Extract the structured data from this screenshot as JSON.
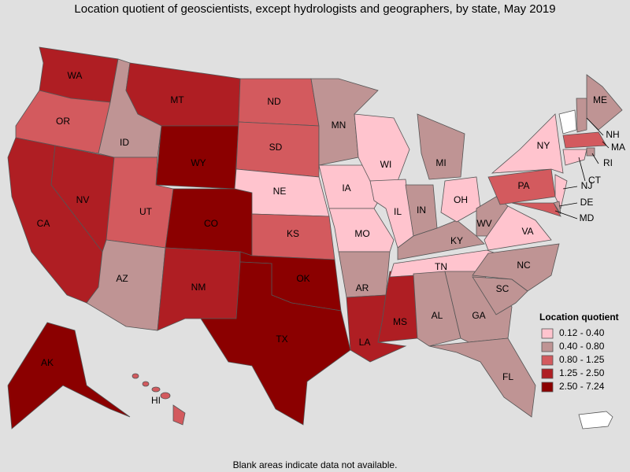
{
  "title": "Location quotient of geoscientists, except hydrologists and geographers, by state, May 2019",
  "footnote": "Blank areas indicate data not available.",
  "legend": {
    "title": "Location quotient",
    "items": [
      {
        "label": "0.12 - 0.40",
        "color": "#ffc4ce"
      },
      {
        "label": "0.40 - 0.80",
        "color": "#bf9494"
      },
      {
        "label": "0.80 - 1.25",
        "color": "#d35a5e"
      },
      {
        "label": "1.25 - 2.50",
        "color": "#af1e23"
      },
      {
        "label": "2.50 - 7.24",
        "color": "#8b0000"
      }
    ]
  },
  "states": [
    {
      "abbr": "WA",
      "bin": 3
    },
    {
      "abbr": "OR",
      "bin": 2
    },
    {
      "abbr": "CA",
      "bin": 3
    },
    {
      "abbr": "NV",
      "bin": 3
    },
    {
      "abbr": "ID",
      "bin": 1
    },
    {
      "abbr": "MT",
      "bin": 3
    },
    {
      "abbr": "WY",
      "bin": 4
    },
    {
      "abbr": "UT",
      "bin": 2
    },
    {
      "abbr": "CO",
      "bin": 4
    },
    {
      "abbr": "AZ",
      "bin": 1
    },
    {
      "abbr": "NM",
      "bin": 3
    },
    {
      "abbr": "ND",
      "bin": 2
    },
    {
      "abbr": "SD",
      "bin": 2
    },
    {
      "abbr": "NE",
      "bin": 0
    },
    {
      "abbr": "KS",
      "bin": 2
    },
    {
      "abbr": "OK",
      "bin": 4
    },
    {
      "abbr": "TX",
      "bin": 4
    },
    {
      "abbr": "MN",
      "bin": 1
    },
    {
      "abbr": "IA",
      "bin": 0
    },
    {
      "abbr": "MO",
      "bin": 0
    },
    {
      "abbr": "AR",
      "bin": 1
    },
    {
      "abbr": "LA",
      "bin": 3
    },
    {
      "abbr": "WI",
      "bin": 0
    },
    {
      "abbr": "IL",
      "bin": 0
    },
    {
      "abbr": "MS",
      "bin": 3
    },
    {
      "abbr": "MI",
      "bin": 1
    },
    {
      "abbr": "IN",
      "bin": 1
    },
    {
      "abbr": "KY",
      "bin": 1
    },
    {
      "abbr": "TN",
      "bin": 0
    },
    {
      "abbr": "AL",
      "bin": 1
    },
    {
      "abbr": "OH",
      "bin": 0
    },
    {
      "abbr": "WV",
      "bin": 1
    },
    {
      "abbr": "GA",
      "bin": 1
    },
    {
      "abbr": "FL",
      "bin": 1
    },
    {
      "abbr": "SC",
      "bin": 1
    },
    {
      "abbr": "NC",
      "bin": 1
    },
    {
      "abbr": "VA",
      "bin": 0
    },
    {
      "abbr": "PA",
      "bin": 2
    },
    {
      "abbr": "NY",
      "bin": 0
    },
    {
      "abbr": "ME",
      "bin": 1
    },
    {
      "abbr": "NH",
      "bin": 1
    },
    {
      "abbr": "MA",
      "bin": 2
    },
    {
      "abbr": "RI",
      "bin": 1
    },
    {
      "abbr": "CT",
      "bin": 0
    },
    {
      "abbr": "NJ",
      "bin": 0
    },
    {
      "abbr": "DE",
      "bin": 1
    },
    {
      "abbr": "MD",
      "bin": 2
    },
    {
      "abbr": "AK",
      "bin": 4
    },
    {
      "abbr": "HI",
      "bin": 2
    }
  ]
}
